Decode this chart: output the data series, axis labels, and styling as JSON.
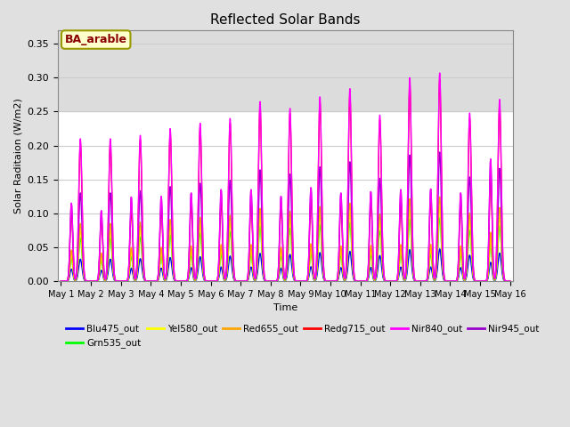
{
  "title": "Reflected Solar Bands",
  "xlabel": "Time",
  "ylabel": "Solar Raditaion (W/m2)",
  "ylim": [
    0,
    0.37
  ],
  "yticks": [
    0.0,
    0.05,
    0.1,
    0.15,
    0.2,
    0.25,
    0.3,
    0.35
  ],
  "n_days": 15,
  "annotation_text": "BA_arable",
  "annotation_bg": "#FFFFCC",
  "annotation_fg": "#8B0000",
  "annotation_edge": "#999900",
  "bands": [
    {
      "name": "Blu475_out",
      "color": "#0000FF"
    },
    {
      "name": "Grn535_out",
      "color": "#00FF00"
    },
    {
      "name": "Yel580_out",
      "color": "#FFFF00"
    },
    {
      "name": "Red655_out",
      "color": "#FFA500"
    },
    {
      "name": "Redg715_out",
      "color": "#FF0000"
    },
    {
      "name": "Nir840_out",
      "color": "#FF00FF"
    },
    {
      "name": "Nir945_out",
      "color": "#9900CC"
    }
  ],
  "nir840_peaks": [
    0.21,
    0.21,
    0.215,
    0.225,
    0.233,
    0.24,
    0.265,
    0.255,
    0.272,
    0.284,
    0.245,
    0.3,
    0.307,
    0.248,
    0.268
  ],
  "nir840_peaks2": [
    0.115,
    0.104,
    0.124,
    0.125,
    0.13,
    0.135,
    0.135,
    0.125,
    0.138,
    0.13,
    0.132,
    0.135,
    0.136,
    0.13,
    0.18
  ],
  "scale_factors": {
    "Blu475_out": 0.155,
    "Grn535_out": 0.305,
    "Yel580_out": 0.355,
    "Red655_out": 0.405,
    "Redg715_out": 0.97,
    "Nir840_out": 1.0,
    "Nir945_out": 0.62
  },
  "scale_factors2": {
    "Blu475_out": 0.155,
    "Grn535_out": 0.3,
    "Yel580_out": 0.35,
    "Red655_out": 0.4,
    "Redg715_out": 0.88,
    "Nir840_out": 1.0,
    "Nir945_out": 1.0
  },
  "background_color": "#E0E0E0",
  "plot_bg": "#FFFFFF",
  "shaded_bg": "#DCDCDC",
  "shaded_low": 0.25,
  "shaded_high": 0.37,
  "grid_color": "#CCCCCC",
  "title_fontsize": 11,
  "sigma1": 0.055,
  "sigma2": 0.045
}
